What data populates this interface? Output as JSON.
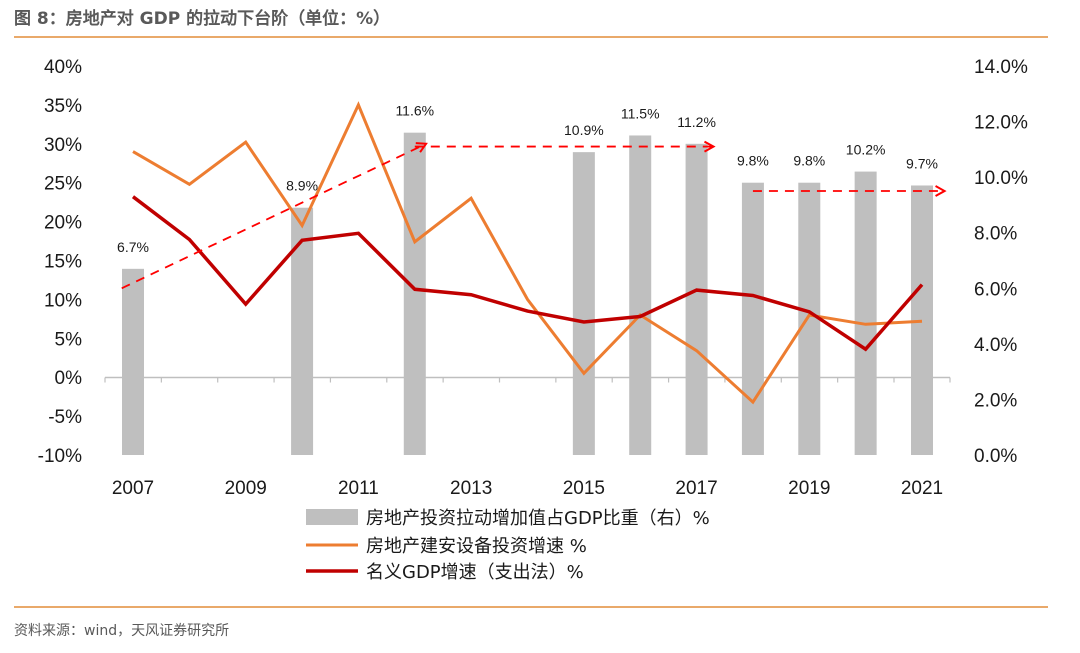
{
  "title": "图 8：房地产对 GDP 的拉动下台阶（单位：%）",
  "source": "资料来源：wind，天风证券研究所",
  "chart_data": {
    "type": "bar",
    "x": [
      2007,
      2008,
      2009,
      2010,
      2011,
      2012,
      2013,
      2014,
      2015,
      2016,
      2017,
      2018,
      2019,
      2020,
      2021
    ],
    "x_tick_labels": [
      "2007",
      "2009",
      "2011",
      "2013",
      "2015",
      "2017",
      "2019",
      "2021"
    ],
    "left_axis": {
      "ylim": [
        -10,
        40
      ],
      "ticks": [
        -10,
        -5,
        0,
        5,
        10,
        15,
        20,
        25,
        30,
        35,
        40
      ],
      "tick_labels": [
        "-10%",
        "-5%",
        "0%",
        "5%",
        "10%",
        "15%",
        "20%",
        "25%",
        "30%",
        "35%",
        "40%"
      ]
    },
    "right_axis": {
      "ylim": [
        0,
        14
      ],
      "ticks": [
        0,
        2,
        4,
        6,
        8,
        10,
        12,
        14
      ],
      "tick_labels": [
        "0.0%",
        "2.0%",
        "4.0%",
        "6.0%",
        "8.0%",
        "10.0%",
        "12.0%",
        "14.0%"
      ]
    },
    "series": [
      {
        "name": "房地产投资拉动增加值占GDP比重（右）%",
        "kind": "bar",
        "axis": "right",
        "color": "#bfbfbf",
        "points": [
          {
            "x": 2007,
            "y": 6.7,
            "label": "6.7%"
          },
          {
            "x": 2010,
            "y": 8.9,
            "label": "8.9%"
          },
          {
            "x": 2012,
            "y": 11.6,
            "label": "11.6%"
          },
          {
            "x": 2015,
            "y": 10.9,
            "label": "10.9%"
          },
          {
            "x": 2016,
            "y": 11.5,
            "label": "11.5%"
          },
          {
            "x": 2017,
            "y": 11.2,
            "label": "11.2%"
          },
          {
            "x": 2018,
            "y": 9.8,
            "label": "9.8%"
          },
          {
            "x": 2019,
            "y": 9.8,
            "label": "9.8%"
          },
          {
            "x": 2020,
            "y": 10.2,
            "label": "10.2%"
          },
          {
            "x": 2021,
            "y": 9.7,
            "label": "9.7%"
          }
        ]
      },
      {
        "name": "房地产建安设备投资增速 %",
        "kind": "line",
        "axis": "left",
        "color": "#ed7d31",
        "points": [
          {
            "x": 2007,
            "y": 29.0
          },
          {
            "x": 2008,
            "y": 24.8
          },
          {
            "x": 2009,
            "y": 30.2
          },
          {
            "x": 2010,
            "y": 19.5
          },
          {
            "x": 2011,
            "y": 35.0
          },
          {
            "x": 2012,
            "y": 17.4
          },
          {
            "x": 2013,
            "y": 23.0
          },
          {
            "x": 2014,
            "y": 10.0
          },
          {
            "x": 2015,
            "y": 0.5
          },
          {
            "x": 2016,
            "y": 8.0
          },
          {
            "x": 2017,
            "y": 3.4
          },
          {
            "x": 2018,
            "y": -3.2
          },
          {
            "x": 2019,
            "y": 8.0
          },
          {
            "x": 2020,
            "y": 6.8
          },
          {
            "x": 2021,
            "y": 7.2
          }
        ]
      },
      {
        "name": "名义GDP增速（支出法）%",
        "kind": "line",
        "axis": "left",
        "color": "#c00000",
        "points": [
          {
            "x": 2007,
            "y": 23.2
          },
          {
            "x": 2008,
            "y": 17.7
          },
          {
            "x": 2009,
            "y": 9.4
          },
          {
            "x": 2010,
            "y": 17.6
          },
          {
            "x": 2011,
            "y": 18.5
          },
          {
            "x": 2012,
            "y": 11.3
          },
          {
            "x": 2013,
            "y": 10.6
          },
          {
            "x": 2014,
            "y": 8.5
          },
          {
            "x": 2015,
            "y": 7.1
          },
          {
            "x": 2016,
            "y": 7.8
          },
          {
            "x": 2017,
            "y": 11.2
          },
          {
            "x": 2018,
            "y": 10.5
          },
          {
            "x": 2019,
            "y": 8.4
          },
          {
            "x": 2020,
            "y": 3.6
          },
          {
            "x": 2021,
            "y": 11.9
          }
        ]
      }
    ],
    "trend_arrows": [
      {
        "axis": "right",
        "color": "#ff0000",
        "from": {
          "x": 2006.8,
          "y": 6.0
        },
        "to": {
          "x": 2012.2,
          "y": 11.2
        }
      },
      {
        "axis": "right",
        "color": "#ff0000",
        "from": {
          "x": 2012.0,
          "y": 11.1
        },
        "to": {
          "x": 2017.3,
          "y": 11.1
        }
      },
      {
        "axis": "right",
        "color": "#ff0000",
        "from": {
          "x": 2018.0,
          "y": 9.5
        },
        "to": {
          "x": 2021.4,
          "y": 9.5
        }
      }
    ],
    "legend_position": "bottom-center"
  }
}
